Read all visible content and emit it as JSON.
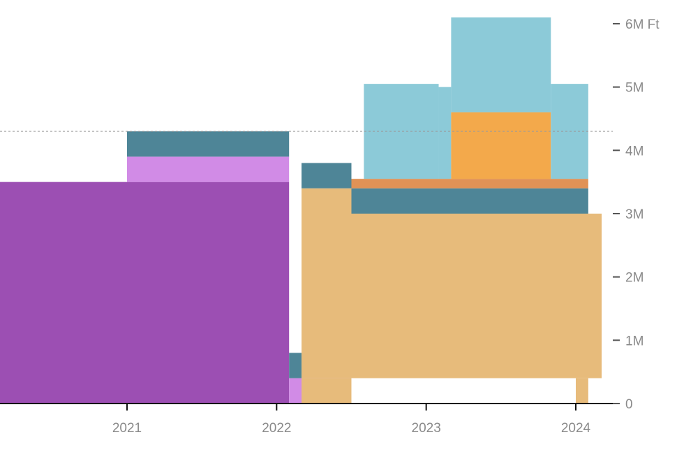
{
  "chart_data": {
    "type": "area",
    "title": "",
    "xlabel": "",
    "ylabel": "",
    "x_ticks": [
      "2021",
      "2022",
      "2023",
      "2024"
    ],
    "y_ticks": [
      "0",
      "1M",
      "2M",
      "3M",
      "4M",
      "5M",
      "6M Ft"
    ],
    "xlim": [
      "2020-02",
      "2024-04"
    ],
    "ylim": [
      0,
      6000000
    ],
    "reference_line": 4300000,
    "grid": false,
    "legend": "none",
    "colors": {
      "purple": "#9c4fb3",
      "light_purple": "#d18be6",
      "teal": "#4e8597",
      "tan": "#e7bb7b",
      "orange": "#f3a94b",
      "dark_orange": "#e19256",
      "light_blue": "#8ccad8"
    },
    "segments": [
      {
        "x": [
          "2020-02",
          "2022-02"
        ],
        "y": [
          0,
          3500000
        ],
        "color": "purple"
      },
      {
        "x": [
          "2021-01",
          "2022-02"
        ],
        "y": [
          3500000,
          3900000
        ],
        "color": "light_purple"
      },
      {
        "x": [
          "2021-01",
          "2022-02"
        ],
        "y": [
          3900000,
          4300000
        ],
        "color": "teal"
      },
      {
        "x": [
          "2022-02",
          "2022-07"
        ],
        "y": [
          0,
          400000
        ],
        "color": "light_purple"
      },
      {
        "x": [
          "2022-02",
          "2022-03"
        ],
        "y": [
          400000,
          800000
        ],
        "color": "teal"
      },
      {
        "x": [
          "2022-03",
          "2024-04"
        ],
        "y": [
          400000,
          3000000
        ],
        "color": "tan"
      },
      {
        "x": [
          "2022-03",
          "2022-07"
        ],
        "y": [
          0,
          400000
        ],
        "color": "tan"
      },
      {
        "x": [
          "2024-01",
          "2024-02"
        ],
        "y": [
          0,
          400000
        ],
        "color": "tan"
      },
      {
        "x": [
          "2022-03",
          "2022-07"
        ],
        "y": [
          3000000,
          3400000
        ],
        "color": "tan"
      },
      {
        "x": [
          "2022-03",
          "2022-07"
        ],
        "y": [
          3400000,
          3800000
        ],
        "color": "teal"
      },
      {
        "x": [
          "2022-07",
          "2024-02"
        ],
        "y": [
          3000000,
          3400000
        ],
        "color": "teal"
      },
      {
        "x": [
          "2022-07",
          "2024-02"
        ],
        "y": [
          3400000,
          3550000
        ],
        "color": "dark_orange"
      },
      {
        "x": [
          "2022-08",
          "2023-02"
        ],
        "y": [
          3550000,
          5050000
        ],
        "color": "light_blue"
      },
      {
        "x": [
          "2023-02",
          "2023-03"
        ],
        "y": [
          3550000,
          5000000
        ],
        "color": "light_blue"
      },
      {
        "x": [
          "2023-03",
          "2023-11"
        ],
        "y": [
          4600000,
          6100000
        ],
        "color": "light_blue"
      },
      {
        "x": [
          "2023-03",
          "2023-11"
        ],
        "y": [
          3550000,
          4600000
        ],
        "color": "orange"
      },
      {
        "x": [
          "2023-11",
          "2024-02"
        ],
        "y": [
          3550000,
          5050000
        ],
        "color": "light_blue"
      }
    ]
  }
}
